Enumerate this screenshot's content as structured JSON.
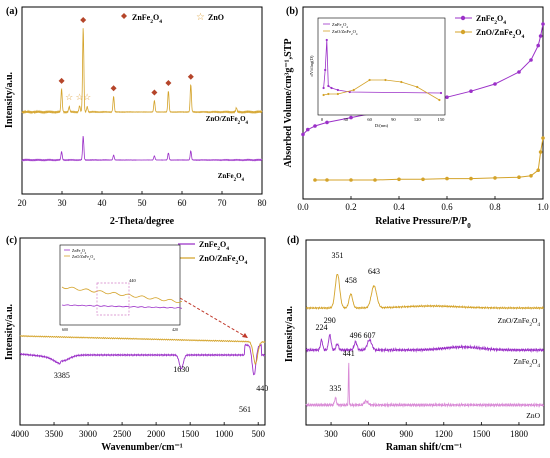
{
  "chart_data": [
    {
      "panel": "(a)",
      "type": "line",
      "xlabel": "2-Theta/degree",
      "ylabel": "Intensity/a.u.",
      "xlim": [
        20,
        80
      ],
      "xticks": [
        20,
        30,
        40,
        50,
        60,
        70,
        80
      ],
      "legend": [
        {
          "marker": "diamond",
          "name": "ZnFe2O4",
          "color": "#b5452a"
        },
        {
          "marker": "star",
          "name": "ZnO",
          "color": "#e0a84a"
        }
      ],
      "series": [
        {
          "name": "ZnO/ZnFe2O4",
          "color": "#d4a32a",
          "peaks": [
            [
              29.9,
              0.22
            ],
            [
              31.8,
              0.05
            ],
            [
              34.4,
              0.06
            ],
            [
              35.3,
              0.8
            ],
            [
              36.3,
              0.05
            ],
            [
              42.9,
              0.15
            ],
            [
              53.1,
              0.11
            ],
            [
              56.6,
              0.2
            ],
            [
              62.2,
              0.26
            ],
            [
              73.6,
              0.04
            ]
          ]
        },
        {
          "name": "ZnFe2O4",
          "color": "#9b30c8",
          "peaks": [
            [
              29.9,
              0.12
            ],
            [
              35.3,
              0.34
            ],
            [
              42.9,
              0.07
            ],
            [
              53.1,
              0.06
            ],
            [
              56.6,
              0.1
            ],
            [
              62.2,
              0.13
            ]
          ]
        }
      ],
      "markers": {
        "diamond_x": [
          29.9,
          35.3,
          42.9,
          53.1,
          56.6,
          62.2
        ],
        "star_x": [
          31.8,
          34.4,
          36.3
        ]
      }
    },
    {
      "panel": "(b)",
      "type": "line",
      "xlabel": "Relative Pressure/P/P",
      "xlabel_sub": "0",
      "ylabel": "Absorbed Volume/cm³g⁻¹,STP",
      "xlim": [
        0.0,
        1.0
      ],
      "xticks": [
        0.0,
        0.2,
        0.4,
        0.6,
        0.8,
        1.0
      ],
      "series": [
        {
          "name": "ZnFe2O4",
          "color": "#9b30c8",
          "x": [
            0.0,
            0.02,
            0.05,
            0.1,
            0.2,
            0.3,
            0.4,
            0.5,
            0.6,
            0.7,
            0.8,
            0.9,
            0.95,
            0.98,
            0.99,
            1.0
          ],
          "y": [
            0.08,
            0.12,
            0.15,
            0.18,
            0.22,
            0.26,
            0.3,
            0.34,
            0.39,
            0.44,
            0.5,
            0.6,
            0.7,
            0.82,
            0.9,
            1.0
          ]
        },
        {
          "name": "ZnO/ZnFe2O4",
          "color": "#d4a32a",
          "x": [
            0.05,
            0.1,
            0.2,
            0.3,
            0.4,
            0.5,
            0.6,
            0.7,
            0.8,
            0.9,
            0.95,
            0.98,
            0.99,
            1.0
          ],
          "y": [
            0.05,
            0.05,
            0.05,
            0.05,
            0.055,
            0.055,
            0.06,
            0.06,
            0.065,
            0.07,
            0.08,
            0.12,
            0.25,
            0.35
          ]
        }
      ],
      "inset": {
        "legend": [
          "ZnFe2O4",
          "ZnO/ZnFe2O4"
        ],
        "xlabel": "D/(nm)",
        "ylabel": "dV/dlog(D)",
        "xticks": [
          0,
          30,
          60,
          90,
          120,
          150
        ]
      }
    },
    {
      "panel": "(c)",
      "type": "line",
      "xlabel": "Wavenumber/cm⁻¹",
      "ylabel": "Intensity/a.u.",
      "xlim": [
        4000,
        400
      ],
      "xticks": [
        4000,
        3500,
        3000,
        2500,
        2000,
        1500,
        1000,
        500
      ],
      "series": [
        {
          "name": "ZnFe2O4",
          "color": "#9b30c8"
        },
        {
          "name": "ZnO/ZnFe2O4",
          "color": "#d4a32a"
        }
      ],
      "annotations": [
        "3385",
        "1630",
        "561",
        "440"
      ],
      "inset": {
        "legend": [
          "ZnFe2O4",
          "ZnO/ZnFe2O4"
        ],
        "label": "440",
        "xticks": [
          "600",
          "420"
        ]
      }
    },
    {
      "panel": "(d)",
      "type": "line",
      "xlabel": "Raman shift/cm⁻¹",
      "ylabel": "Intensity/a.u.",
      "xlim": [
        100,
        2000
      ],
      "xticks": [
        300,
        600,
        900,
        1200,
        1500,
        1800
      ],
      "series": [
        {
          "name": "ZnO/ZnFe2O4",
          "color": "#d4a32a",
          "peak_labels": [
            "351",
            "458",
            "643"
          ]
        },
        {
          "name": "ZnFe2O4",
          "color": "#9b30c8",
          "peak_labels": [
            "224",
            "290",
            "496",
            "607"
          ]
        },
        {
          "name": "ZnO",
          "color": "#d98ad6",
          "peak_labels": [
            "335",
            "441"
          ]
        }
      ]
    }
  ]
}
